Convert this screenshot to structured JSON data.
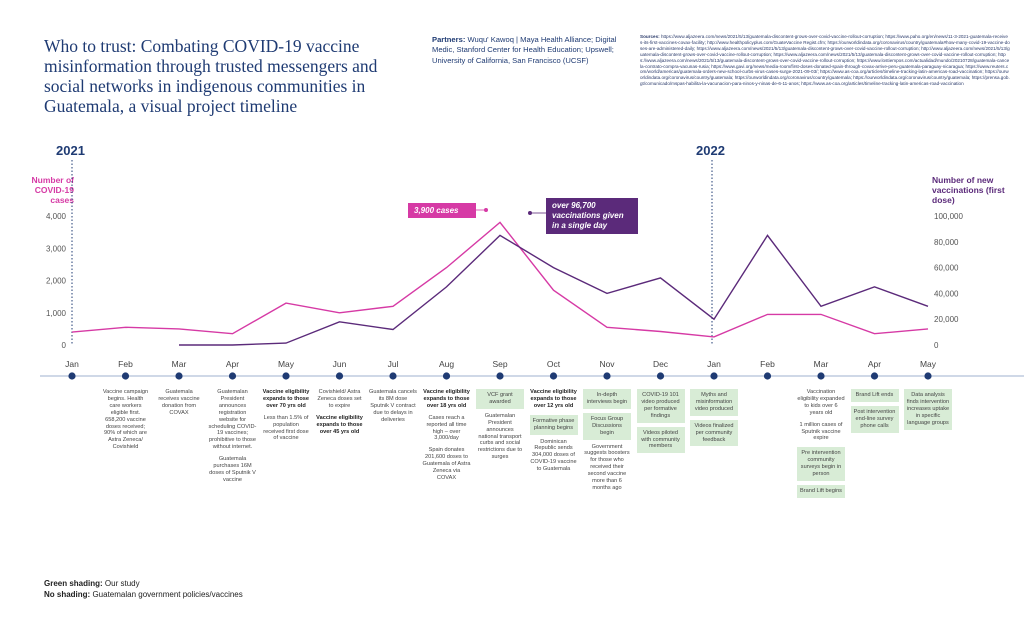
{
  "title": "Who to trust: Combating COVID-19 vaccine misinformation through trusted messengers and social networks in indigenous communities in Guatemala, a visual project timeline",
  "partners": {
    "label": "Partners:",
    "text": "Wuqu' Kawoq | Maya Health Alliance; Digital Medic, Stanford Center for Health Education; Upswell; University of California, San Francisco (UCSF)"
  },
  "sources": {
    "label": "Sources:",
    "text": "https://www.aljazeera.com/news/2021/5/13/guatemala-discontent-grows-over-covid-vaccine-rollout-corruption; https://www.paho.org/en/news/11-3-2021-guatemala-receives-its-first-vaccines-covax-facility; http://www.healthpolicyplus.com/GuateVaccine Regist.cfm; https://ourworldindata.org/coronavirus/country/guatemala#how-many-covid-19-vaccine-doses-are-administered-daily; https://www.aljazeera.com/news/2021/5/13/guatemala-discontent-grows-over-covid-vaccine-rollout-corruption; http://www.aljazeera.com/news/2021/5/13/guatemala-discontent-grows-over-covid-vaccine-rollout-corruption; https://www.aljazeera.com/news/2021/5/13/guatemala-discontent-grows-over-covid-vaccine-rollout-corruption; https://www.aljazeera.com/news/2021/5/13/guatemala-discontent-grows-over-covid-vaccine-rollout-corruption; https://www.lostiempos.com/actualidad/mundo/20210728/guatemala-cancela-contrato-compra-vacunas-rusia; https://www.gavi.org/news/media-room/first-doses-donated-spain-through-covax-arrive-peru-guatemala-paraguay-nicaragua; https://www.reuters.com/world/americas/guatemala-orders-new-school-curbs-virus-cases-surge-2021-09-03/; https://www.as-coa.org/articles/timeline-tracking-latin-americas-road-vaccination; https://ourworldindata.org/coronavirus/country/guatemala; https://ourworldindata.org/coronavirus/country/guatemala; https://ourworldindata.org/coronavirus/country/guatemala; https://prensa.gob.gt/comunicado/mspas-habilita-la-vacunacion-para-ninos-y-ninas-de-6-11-anos; https://www.as-coa.org/articles/timeline-tracking-latin-americas-road-vaccination"
  },
  "years": {
    "start": "2021",
    "end": "2022"
  },
  "axes": {
    "left_title": "Number of COVID-19 cases",
    "right_title": "Number of new vaccinations (first dose)",
    "left_ticks": [
      "0",
      "1,000",
      "2,000",
      "3,000",
      "4,000"
    ],
    "right_ticks": [
      "0",
      "20,000",
      "40,000",
      "60,000",
      "80,000",
      "100,000"
    ]
  },
  "months": [
    "Jan",
    "Feb",
    "Mar",
    "Apr",
    "May",
    "Jun",
    "Jul",
    "Aug",
    "Sep",
    "Oct",
    "Nov",
    "Dec",
    "Jan",
    "Feb",
    "Mar",
    "Apr",
    "May"
  ],
  "callouts": {
    "cases": "3,900 cases",
    "vaccinations": "over 96,700 vaccinations given in a single day"
  },
  "colors": {
    "cases": "#d63aa5",
    "vaccinations": "#5b2a7a",
    "timeline": "#1f3b73",
    "study": "#d8ecd6"
  },
  "chart_data": {
    "type": "line",
    "x": [
      "Jan 2021",
      "Feb 2021",
      "Mar 2021",
      "Apr 2021",
      "May 2021",
      "Jun 2021",
      "Jul 2021",
      "Aug 2021",
      "Sep 2021",
      "Oct 2021",
      "Nov 2021",
      "Dec 2021",
      "Jan 2022",
      "Feb 2022",
      "Mar 2022",
      "Apr 2022",
      "May 2022"
    ],
    "series": [
      {
        "axis": "left",
        "values": [
          400,
          550,
          500,
          350,
          1300,
          1000,
          1200,
          2400,
          3800,
          1700,
          550,
          420,
          250,
          950,
          950,
          350,
          500
        ]
      },
      {
        "axis": "right",
        "values": [
          null,
          null,
          0,
          0,
          1500,
          18000,
          12000,
          45000,
          85000,
          60000,
          40000,
          52000,
          20000,
          85000,
          30000,
          45000,
          30000
        ]
      }
    ],
    "ylim_left": [
      0,
      4000
    ],
    "ylim_right": [
      0,
      100000
    ]
  },
  "events": [
    {
      "month": 1,
      "items": [
        {
          "style": "text",
          "text": "Vaccine campaign begins. Health care workers eligible first. 658,200 vaccine doses received; 90% of which are Astra Zeneca/ Covishield"
        }
      ]
    },
    {
      "month": 2,
      "items": [
        {
          "style": "text",
          "text": "Guatemala receives vaccine donation from COVAX"
        }
      ]
    },
    {
      "month": 3,
      "items": [
        {
          "style": "text",
          "text": "Guatemalan President announces registration website for scheduling COVID-19 vaccines; prohibitive to those without internet."
        },
        {
          "style": "text",
          "text": "Guatemala purchases 16M doses of Sputnik V vaccine"
        }
      ]
    },
    {
      "month": 4,
      "items": [
        {
          "style": "bold",
          "text": "Vaccine eligibility expands to those over 70 yrs old"
        },
        {
          "style": "text",
          "text": "Less than 1.5% of population received first dose of vaccine"
        }
      ]
    },
    {
      "month": 5,
      "items": [
        {
          "style": "text",
          "text": "Covishield/ Astra Zeneca doses set to expire"
        },
        {
          "style": "bold",
          "text": "Vaccine eligibility expands to those over 45 yrs old"
        }
      ]
    },
    {
      "month": 6,
      "items": [
        {
          "style": "text",
          "text": "Guatemala cancels its 8M dose Sputnik V contract due to delays in deliveries"
        }
      ]
    },
    {
      "month": 7,
      "items": [
        {
          "style": "bold",
          "text": "Vaccine eligibility expands to those over 18 yrs old"
        },
        {
          "style": "text",
          "text": "Cases reach a reported all time high – over 3,000/day"
        },
        {
          "style": "text",
          "text": "Spain donates 201,600 doses to Guatemala of Astra Zeneca via COVAX"
        }
      ]
    },
    {
      "month": 8,
      "items": [
        {
          "style": "green",
          "text": "VCF grant awarded"
        },
        {
          "style": "text",
          "text": "Guatemalan President announces national transport curbs and social restrictions due to surges"
        }
      ]
    },
    {
      "month": 9,
      "items": [
        {
          "style": "bold",
          "text": "Vaccine eligibility expands to those over 12 yrs old"
        },
        {
          "style": "green",
          "text": "Formative phase planning begins"
        },
        {
          "style": "text",
          "text": "Dominican Republic sends 304,000 doses of COVID-19 vaccine to Guatemala"
        }
      ]
    },
    {
      "month": 10,
      "items": [
        {
          "style": "green",
          "text": "In-depth interviews begin"
        },
        {
          "style": "green",
          "text": "Focus Group Discussions begin"
        },
        {
          "style": "text",
          "text": "Government suggests boosters for those who received their second vaccine more than 6 months ago"
        }
      ]
    },
    {
      "month": 11,
      "items": [
        {
          "style": "green",
          "text": "COVID-19 101 video produced per formative findings"
        },
        {
          "style": "green",
          "text": "Videos piloted with community members"
        }
      ]
    },
    {
      "month": 12,
      "items": [
        {
          "style": "green",
          "text": "Myths and misinformation video produced"
        },
        {
          "style": "green",
          "text": "Videos finalized per community feedback"
        }
      ]
    },
    {
      "month": 14,
      "items": [
        {
          "style": "text",
          "text": "Vaccination eligibility expanded to kids over 6 years old"
        },
        {
          "style": "text",
          "text": "1 million cases of Sputnik vaccine expire"
        },
        {
          "style": "green",
          "text": "Pre intervention community surveys begin in person"
        },
        {
          "style": "green",
          "text": "Brand Lift begins"
        }
      ]
    },
    {
      "month": 15,
      "items": [
        {
          "style": "green",
          "text": "Brand Lift ends"
        },
        {
          "style": "green",
          "text": "Post intervention end-line survey phone calls"
        }
      ]
    },
    {
      "month": 16,
      "items": [
        {
          "style": "green",
          "text": "Data analysis finds intervention increases uptake in specific language groups"
        }
      ]
    }
  ],
  "legend": {
    "green_label": "Green shading:",
    "green_text": "Our study",
    "none_label": "No shading:",
    "none_text": "Guatemalan government policies/vaccines"
  }
}
